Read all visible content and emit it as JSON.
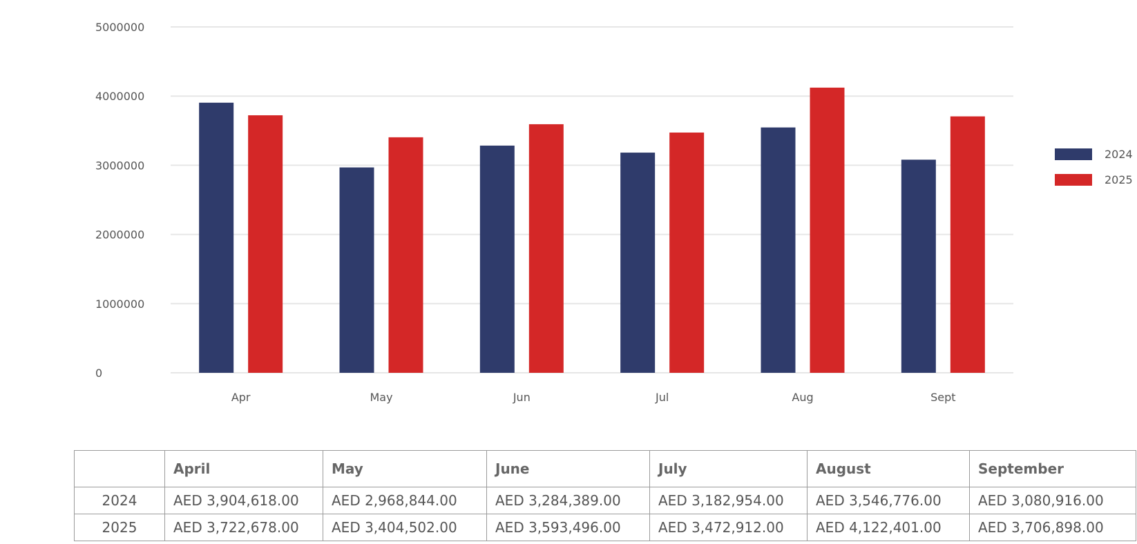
{
  "chart_data": {
    "type": "bar",
    "categories": [
      "Apr",
      "May",
      "Jun",
      "Jul",
      "Aug",
      "Sept"
    ],
    "series": [
      {
        "name": "2024",
        "color": "#2f3b6b",
        "values": [
          3904618,
          2968844,
          3284389,
          3182954,
          3546776,
          3080916
        ]
      },
      {
        "name": "2025",
        "color": "#d42727",
        "values": [
          3722678,
          3404502,
          3593496,
          3472912,
          4122401,
          3706898
        ]
      }
    ],
    "ylim": [
      0,
      5000000
    ],
    "yticks": [
      "0",
      "1000000",
      "2000000",
      "3000000",
      "4000000",
      "5000000"
    ],
    "grid": true,
    "legend_position": "right"
  },
  "table": {
    "headers": [
      "",
      "April",
      "May",
      "June",
      "July",
      "August",
      "September"
    ],
    "rows": [
      {
        "label": "2024",
        "cells": [
          "AED 3,904,618.00",
          "AED 2,968,844.00",
          "AED 3,284,389.00",
          "AED 3,182,954.00",
          "AED 3,546,776.00",
          "AED 3,080,916.00"
        ]
      },
      {
        "label": "2025",
        "cells": [
          "AED 3,722,678.00",
          "AED 3,404,502.00",
          "AED 3,593,496.00",
          "AED 3,472,912.00",
          "AED 4,122,401.00",
          "AED 3,706,898.00"
        ]
      }
    ]
  }
}
